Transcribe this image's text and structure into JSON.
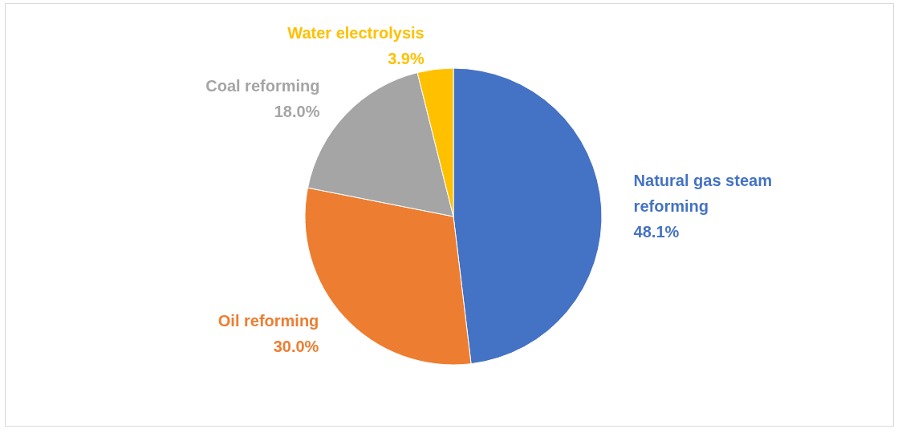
{
  "chart_data": {
    "type": "pie",
    "categories": [
      "Natural gas steam reforming",
      "Oil reforming",
      "Coal reforming",
      "Water electrolysis"
    ],
    "values": [
      48.1,
      30.0,
      18.0,
      3.9
    ],
    "value_labels": [
      "48.1%",
      "30.0%",
      "18.0%",
      "3.9%"
    ],
    "colors": [
      "#4472c4",
      "#ed7d31",
      "#a5a5a5",
      "#ffc000"
    ],
    "legend": false
  }
}
